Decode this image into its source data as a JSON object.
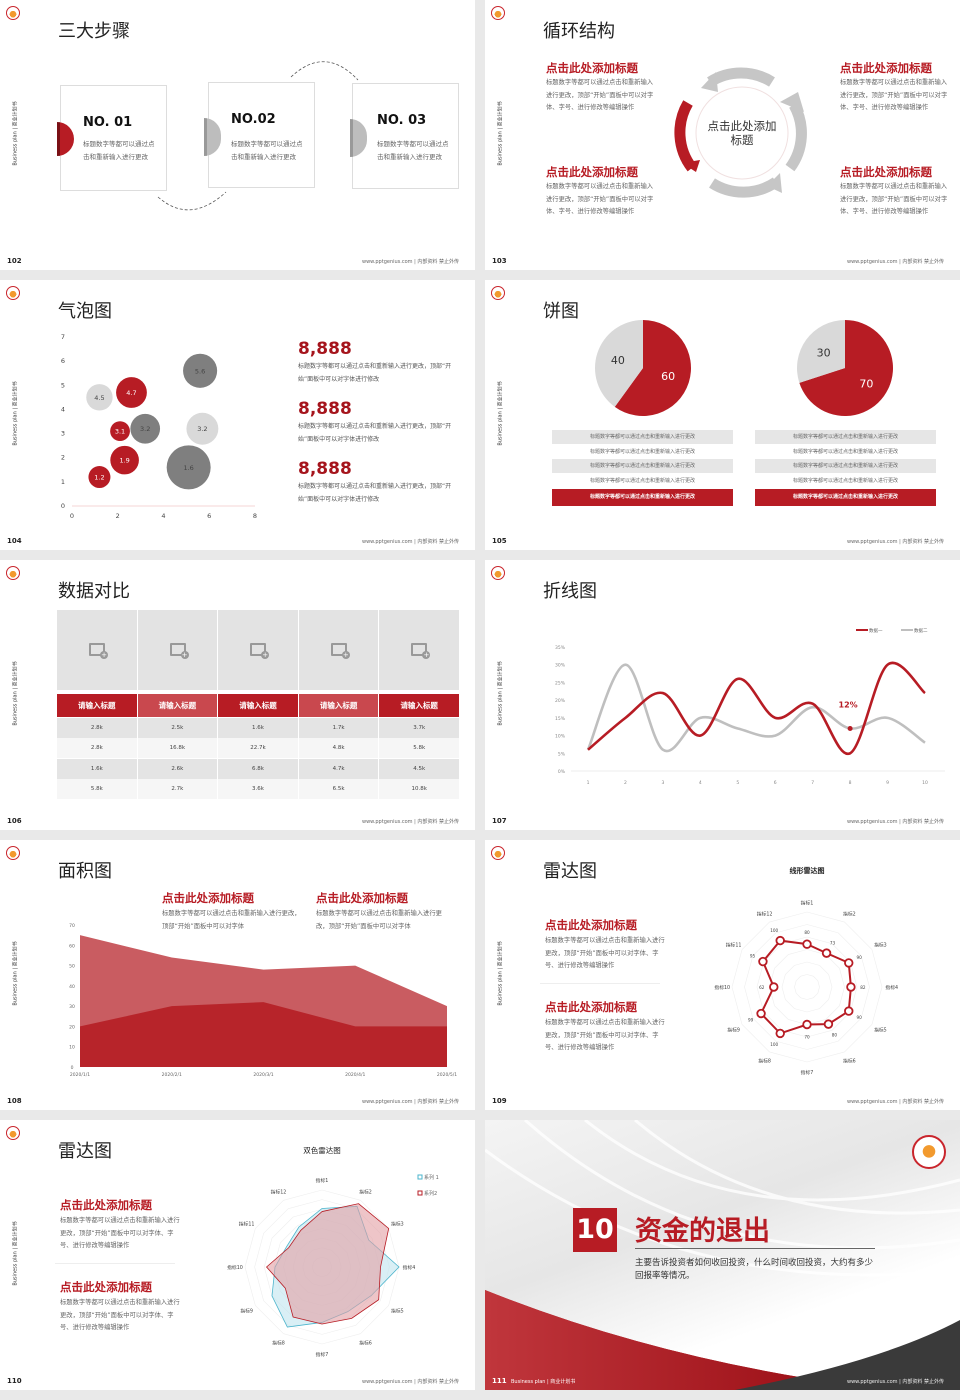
{
  "common": {
    "side_text": "Business plan | 商业计划书",
    "footer": "www.pptgenius.com | 内部资料 禁止外传"
  },
  "colors": {
    "red": "#b71c24",
    "gray": "#bfbfbf",
    "dark_gray": "#7f7f7f",
    "light_gray": "#d9d9d9",
    "blue": "#4bb4cc"
  },
  "s102": {
    "page": "102",
    "title": "三大步骤",
    "steps": [
      {
        "no": "NO. 01",
        "text": "标题数字等都可以通过点击和重新输入进行更改"
      },
      {
        "no": "NO.02",
        "text": "标题数字等都可以通过点击和重新输入进行更改"
      },
      {
        "no": "NO. 03",
        "text": "标题数字等都可以通过点击和重新输入进行更改"
      }
    ]
  },
  "s103": {
    "page": "103",
    "title": "循环结构",
    "center": "点击此处添加标题",
    "blocks": [
      {
        "heading": "点击此处添加标题",
        "text": "标题数字等都可以通过点击和重新输入进行更改，顶部“开始”面板中可以对字体、字号、进行修改等编辑操作"
      },
      {
        "heading": "点击此处添加标题",
        "text": "标题数字等都可以通过点击和重新输入进行更改，顶部“开始”面板中可以对字体、字号、进行修改等编辑操作"
      },
      {
        "heading": "点击此处添加标题",
        "text": "标题数字等都可以通过点击和重新输入进行更改，顶部“开始”面板中可以对字体、字号、进行修改等编辑操作"
      },
      {
        "heading": "点击此处添加标题",
        "text": "标题数字等都可以通过点击和重新输入进行更改，顶部“开始”面板中可以对字体、字号、进行修改等编辑操作"
      }
    ]
  },
  "s104": {
    "page": "104",
    "title": "气泡图",
    "stats": [
      {
        "value": "8,888",
        "text": "标题数字等都可以通过点击和重新输入进行更改，顶部“开始”面板中可以对字体进行修改"
      },
      {
        "value": "8,888",
        "text": "标题数字等都可以通过点击和重新输入进行更改，顶部“开始”面板中可以对字体进行修改"
      },
      {
        "value": "8,888",
        "text": "标题数字等都可以通过点击和重新输入进行更改，顶部“开始”面板中可以对字体进行修改"
      }
    ]
  },
  "s105": {
    "page": "105",
    "title": "饼图",
    "left_rows": [
      "标题数字等都可以通过点击和重新输入进行更改",
      "标题数字等都可以通过点击和重新输入进行更改",
      "标题数字等都可以通过点击和重新输入进行更改",
      "标题数字等都可以通过点击和重新输入进行更改",
      "标题数字等都可以通过点击和重新输入进行更改"
    ],
    "right_rows": [
      "标题数字等都可以通过点击和重新输入进行更改",
      "标题数字等都可以通过点击和重新输入进行更改",
      "标题数字等都可以通过点击和重新输入进行更改",
      "标题数字等都可以通过点击和重新输入进行更改",
      "标题数字等都可以通过点击和重新输入进行更改"
    ]
  },
  "s106": {
    "page": "106",
    "title": "数据对比",
    "headers": [
      "请输入标题",
      "请输入标题",
      "请输入标题",
      "请输入标题",
      "请输入标题"
    ],
    "rows": [
      [
        "2.8k",
        "2.5k",
        "1.6k",
        "1.7k",
        "3.7k"
      ],
      [
        "2.8k",
        "16.8k",
        "22.7k",
        "4.8k",
        "5.8k"
      ],
      [
        "1.6k",
        "2.6k",
        "6.8k",
        "4.7k",
        "4.5k"
      ],
      [
        "5.8k",
        "2.7k",
        "3.6k",
        "6.5k",
        "10.8k"
      ]
    ]
  },
  "s107": {
    "page": "107",
    "title": "折线图"
  },
  "s108": {
    "page": "108",
    "title": "面积图",
    "blocks": [
      {
        "heading": "点击此处添加标题",
        "text": "标题数字等都可以通过点击和重新输入进行更改，顶部“开始”面板中可以对字体"
      },
      {
        "heading": "点击此处添加标题",
        "text": "标题数字等都可以通过点击和重新输入进行更改，顶部“开始”面板中可以对字体"
      }
    ]
  },
  "s109": {
    "page": "109",
    "title": "雷达图",
    "blocks": [
      {
        "heading": "点击此处添加标题",
        "text": "标题数字等都可以通过点击和重新输入进行更改，顶部“开始”面板中可以对字体、字号、进行修改等编辑操作"
      },
      {
        "heading": "点击此处添加标题",
        "text": "标题数字等都可以通过点击和重新输入进行更改，顶部“开始”面板中可以对字体、字号、进行修改等编辑操作"
      }
    ]
  },
  "s110": {
    "page": "110",
    "title": "雷达图",
    "blocks": [
      {
        "heading": "点击此处添加标题",
        "text": "标题数字等都可以通过点击和重新输入进行更改，顶部“开始”面板中可以对字体、字号、进行修改等编辑操作"
      },
      {
        "heading": "点击此处添加标题",
        "text": "标题数字等都可以通过点击和重新输入进行更改，顶部“开始”面板中可以对字体、字号、进行修改等编辑操作"
      }
    ]
  },
  "s111": {
    "page": "111",
    "number": "10",
    "title": "资金的退出",
    "text": "主要告诉投资者如何收回投资，什么时间收回投资，大约有多少回报率等情况。",
    "footer_left": "Business plan | 商业计划书"
  },
  "chart_data": [
    {
      "type": "scatter",
      "subtype": "bubble",
      "xlim": [
        0,
        8
      ],
      "ylim": [
        0,
        7
      ],
      "xticks": [
        "0",
        "2",
        "4",
        "6",
        "8"
      ],
      "yticks": [
        "0",
        "1",
        "2",
        "3",
        "4",
        "5",
        "6",
        "7"
      ],
      "points": [
        {
          "x": 1.2,
          "y": 1.2,
          "label": "1.2",
          "size": 1.0,
          "color": "red"
        },
        {
          "x": 2.3,
          "y": 1.9,
          "label": "1.9",
          "size": 1.3,
          "color": "red"
        },
        {
          "x": 2.1,
          "y": 3.1,
          "label": "3.1",
          "size": 0.9,
          "color": "red"
        },
        {
          "x": 2.6,
          "y": 4.7,
          "label": "4.7",
          "size": 1.4,
          "color": "red"
        },
        {
          "x": 1.2,
          "y": 4.5,
          "label": "4.5",
          "size": 1.2,
          "color": "light_gray"
        },
        {
          "x": 5.7,
          "y": 3.2,
          "label": "3.2",
          "size": 1.45,
          "color": "light_gray"
        },
        {
          "x": 3.2,
          "y": 3.2,
          "label": "3.2",
          "size": 1.35,
          "color": "dark_gray"
        },
        {
          "x": 5.6,
          "y": 5.6,
          "label": "5.6",
          "size": 1.55,
          "color": "dark_gray"
        },
        {
          "x": 5.1,
          "y": 1.6,
          "label": "1.6",
          "size": 2.0,
          "color": "dark_gray"
        }
      ]
    },
    {
      "type": "pie",
      "slices": [
        {
          "label": "60",
          "value": 60,
          "color": "red"
        },
        {
          "label": "40",
          "value": 40,
          "color": "light_gray"
        }
      ]
    },
    {
      "type": "pie",
      "slices": [
        {
          "label": "70",
          "value": 70,
          "color": "red"
        },
        {
          "label": "30",
          "value": 30,
          "color": "light_gray"
        }
      ]
    },
    {
      "type": "line",
      "x": [
        "1",
        "2",
        "3",
        "4",
        "5",
        "6",
        "7",
        "8",
        "9",
        "10"
      ],
      "ylim": [
        0,
        35
      ],
      "yticks": [
        "0%",
        "5%",
        "10%",
        "15%",
        "20%",
        "25%",
        "30%",
        "35%"
      ],
      "legend": "top-right",
      "annotation": {
        "text": "12%",
        "x": "8",
        "y": 12
      },
      "series": [
        {
          "name": "数据一",
          "values": [
            6,
            15,
            22,
            10,
            26,
            15,
            19,
            5,
            30,
            22
          ],
          "color": "red"
        },
        {
          "name": "数据二",
          "values": [
            6,
            30,
            6,
            15,
            12,
            10,
            18,
            12,
            15,
            8
          ],
          "color": "gray"
        }
      ]
    },
    {
      "type": "area",
      "x": [
        "2020/1/1",
        "2020/2/1",
        "2020/3/1",
        "2020/4/1",
        "2020/5/1"
      ],
      "ylim": [
        0,
        70
      ],
      "yticks": [
        "0",
        "10",
        "20",
        "30",
        "40",
        "50",
        "60",
        "70"
      ],
      "series": [
        {
          "values": [
            65,
            54,
            48,
            50,
            30
          ],
          "color": "#c95c61"
        },
        {
          "values": [
            20,
            30,
            32,
            20,
            20
          ],
          "color": "#b7242a"
        }
      ]
    },
    {
      "type": "radar",
      "title": "线形雷达图",
      "axes": [
        "指标1",
        "指标2",
        "指标3",
        "指标4",
        "指标5",
        "指标6",
        "指标7",
        "指标8",
        "指标9",
        "指标10",
        "指标11",
        "指标12"
      ],
      "max": 140,
      "series": [
        {
          "values": [
            80,
            73,
            90,
            82,
            90,
            80,
            70,
            100,
            99,
            62,
            95,
            100
          ],
          "color": "red"
        }
      ]
    },
    {
      "type": "radar",
      "title": "双色雷达图",
      "axes": [
        "指标1",
        "指标2",
        "指标3",
        "指标4",
        "指标5",
        "指标6",
        "指标7",
        "指标8",
        "指标9",
        "指标10",
        "指标11",
        "指标12"
      ],
      "max": 100,
      "legend": "top-right",
      "series": [
        {
          "name": "系列 1",
          "values": [
            76,
            91,
            70,
            100,
            74,
            67,
            72,
            90,
            75,
            61,
            53,
            60
          ],
          "color": "#4bb4cc",
          "fill": "#bfe5ef"
        },
        {
          "name": "系列2",
          "values": [
            72,
            95,
            100,
            76,
            85,
            77,
            74,
            75,
            55,
            72,
            50,
            55
          ],
          "color": "#b71c24",
          "fill": "#e39fa3"
        }
      ]
    }
  ]
}
